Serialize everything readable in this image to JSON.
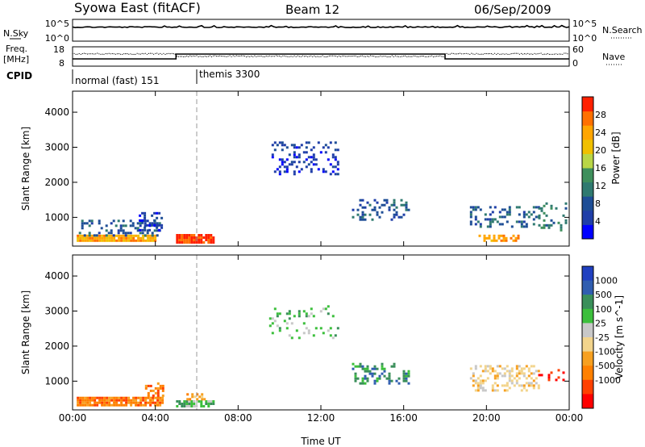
{
  "header": {
    "title": "Syowa East (fitACF)",
    "beam": "Beam 12",
    "date": "06/Sep/2009"
  },
  "top_panels": {
    "nsky": {
      "label": "N.Sky",
      "ticks": [
        "10^5",
        "10^0"
      ],
      "right_label": "N.Search",
      "right_ticks": [
        "10^5",
        "10^0"
      ]
    },
    "freq": {
      "label_line1": "Freq.",
      "label_line2": "[MHz]",
      "ticks": [
        "18",
        "8"
      ],
      "right_label": "Nave",
      "right_ticks": [
        "60",
        "0"
      ]
    },
    "cpid": {
      "label": "CPID",
      "segments": [
        {
          "start_hour": 0,
          "end_hour": 6,
          "name": "normal (fast) 151"
        },
        {
          "start_hour": 6,
          "end_hour": 24,
          "name": "themis 3300"
        }
      ]
    }
  },
  "chart_data": [
    {
      "type": "heatmap",
      "panel": "power",
      "ylabel": "Slant Range [km]",
      "xlabel": "",
      "x_ticks": [
        "00:00",
        "04:00",
        "08:00",
        "12:00",
        "16:00",
        "20:00",
        "00:00"
      ],
      "x_tick_hours": [
        0,
        4,
        8,
        12,
        16,
        20,
        24
      ],
      "y_ticks": [
        1000,
        2000,
        3000,
        4000
      ],
      "ylim": [
        180,
        4600
      ],
      "xlim_hours": [
        0,
        24
      ],
      "colorbar": {
        "label": "Power [dB]",
        "ticks": [
          "28",
          "24",
          "20",
          "16",
          "12",
          "8",
          "4"
        ],
        "tick_values": [
          28,
          24,
          20,
          16,
          12,
          8,
          4
        ],
        "range": [
          0,
          32
        ],
        "colors": [
          "#0000ff",
          "#1f3ea8",
          "#1e4e96",
          "#2f7a70",
          "#3e8f5c",
          "#b9d646",
          "#f0c000",
          "#ffa500",
          "#ff7000",
          "#ff2000"
        ]
      },
      "regions": [
        {
          "t0": 0.2,
          "t1": 4.0,
          "r0": 300,
          "r1": 500,
          "level": 7,
          "density": 0.9
        },
        {
          "t0": 0.3,
          "t1": 4.2,
          "r0": 450,
          "r1": 900,
          "level": 2,
          "density": 0.35
        },
        {
          "t0": 5.0,
          "t1": 6.8,
          "r0": 250,
          "r1": 500,
          "level": 9,
          "density": 0.95
        },
        {
          "t0": 3.2,
          "t1": 4.3,
          "r0": 600,
          "r1": 1100,
          "level": 1,
          "density": 0.4
        },
        {
          "t0": 9.5,
          "t1": 12.8,
          "r0": 2200,
          "r1": 3100,
          "level": 1,
          "density": 0.25
        },
        {
          "t0": 13.5,
          "t1": 16.2,
          "r0": 900,
          "r1": 1500,
          "level": 2,
          "density": 0.3
        },
        {
          "t0": 19.2,
          "t1": 22.5,
          "r0": 700,
          "r1": 1300,
          "level": 2,
          "density": 0.3
        },
        {
          "t0": 19.5,
          "t1": 21.5,
          "r0": 300,
          "r1": 500,
          "level": 7,
          "density": 0.5
        },
        {
          "t0": 22.5,
          "t1": 23.8,
          "r0": 600,
          "r1": 1400,
          "level": 3,
          "density": 0.2
        }
      ]
    },
    {
      "type": "heatmap",
      "panel": "velocity",
      "ylabel": "Slant Range [km]",
      "xlabel": "Time UT",
      "x_ticks": [
        "00:00",
        "04:00",
        "08:00",
        "12:00",
        "16:00",
        "20:00",
        "00:00"
      ],
      "x_tick_hours": [
        0,
        4,
        8,
        12,
        16,
        20,
        24
      ],
      "y_ticks": [
        1000,
        2000,
        3000,
        4000
      ],
      "ylim": [
        180,
        4600
      ],
      "xlim_hours": [
        0,
        24
      ],
      "colorbar": {
        "label": "Velocity [m s^-1]",
        "ticks": [
          "1000",
          "500",
          "100",
          "25",
          "-25",
          "-100",
          "-500",
          "-1000"
        ],
        "tick_values": [
          1000,
          500,
          100,
          25,
          -25,
          -100,
          -500,
          -1000
        ],
        "colors": [
          "#2040c0",
          "#305eb0",
          "#3a8f5a",
          "#3cbf3c",
          "#c8c8c8",
          "#f2d48c",
          "#f7a020",
          "#ff8000",
          "#ff4000",
          "#ff0000"
        ]
      },
      "regions": [
        {
          "t0": 0.2,
          "t1": 4.3,
          "r0": 280,
          "r1": 520,
          "level": 7,
          "density": 0.9
        },
        {
          "t0": 3.5,
          "t1": 4.4,
          "r0": 550,
          "r1": 950,
          "level": 7,
          "density": 0.5
        },
        {
          "t0": 5.0,
          "t1": 6.8,
          "r0": 250,
          "r1": 450,
          "level": 3,
          "density": 0.7
        },
        {
          "t0": 5.5,
          "t1": 6.5,
          "r0": 450,
          "r1": 650,
          "level": 6,
          "density": 0.5
        },
        {
          "t0": 9.5,
          "t1": 12.8,
          "r0": 2200,
          "r1": 3100,
          "level": 3,
          "density": 0.15
        },
        {
          "t0": 13.5,
          "t1": 16.2,
          "r0": 900,
          "r1": 1500,
          "level": 2,
          "density": 0.3
        },
        {
          "t0": 19.2,
          "t1": 22.5,
          "r0": 700,
          "r1": 1400,
          "level": 5,
          "density": 0.35
        },
        {
          "t0": 22.5,
          "t1": 23.9,
          "r0": 1000,
          "r1": 1300,
          "level": 9,
          "density": 0.3
        }
      ]
    }
  ]
}
